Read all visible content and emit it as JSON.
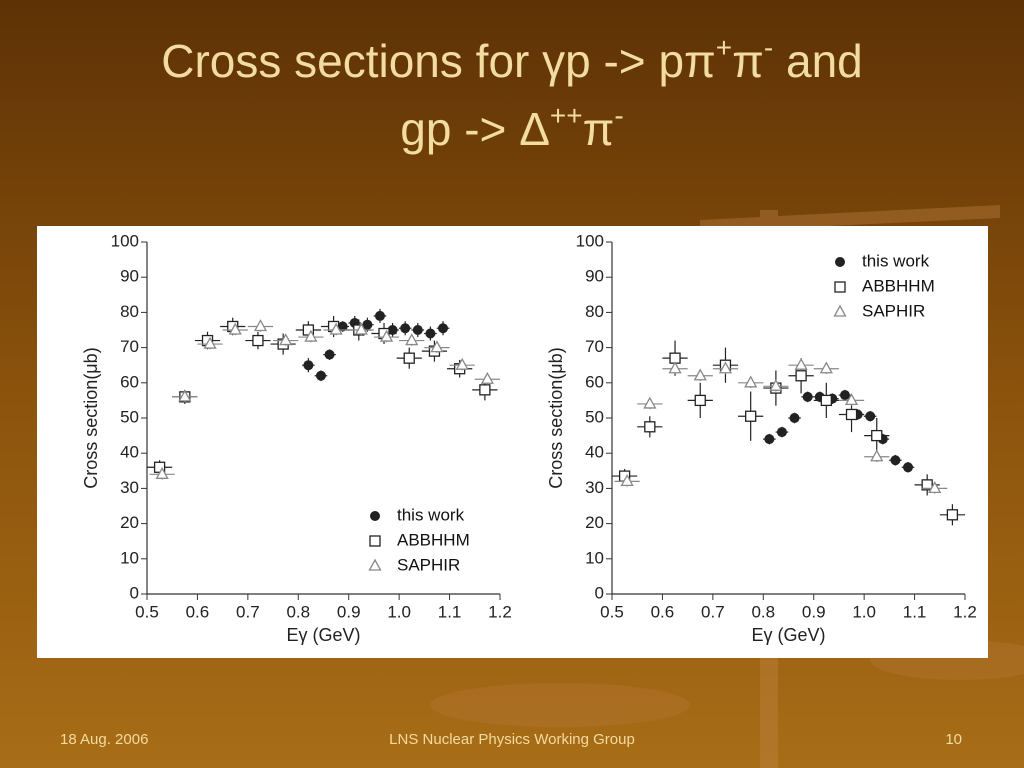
{
  "slide": {
    "title": [
      [
        {
          "text": "Cross sections for γp -> pπ"
        },
        {
          "sup": "+"
        },
        {
          "text": "π"
        },
        {
          "sup": "-"
        },
        {
          "text": " and"
        }
      ],
      [
        {
          "text": "gp -> Δ"
        },
        {
          "sup": "++"
        },
        {
          "text": "π"
        },
        {
          "sup": "-"
        }
      ]
    ],
    "footer": {
      "date": "18 Aug. 2006",
      "center": "LNS Nuclear Physics Working Group",
      "page": "10"
    }
  },
  "chart_data": [
    {
      "type": "scatter",
      "xlabel": "Eγ (GeV)",
      "ylabel": "Cross section(μb)",
      "xlim": [
        0.5,
        1.2
      ],
      "ylim": [
        0,
        100
      ],
      "xticks": [
        0.5,
        0.6,
        0.7,
        0.8,
        0.9,
        {
          "value": 1,
          "label": "1.0"
        },
        1.1,
        1.2
      ],
      "yticks": [
        0,
        10,
        20,
        30,
        40,
        50,
        60,
        70,
        80,
        90,
        100
      ],
      "legend": "lower right",
      "series": [
        {
          "name": "this work",
          "color": "#222222",
          "marker": "circle",
          "xerr": 0.0125,
          "x": [
            0.82,
            0.845,
            0.862,
            0.888,
            0.912,
            0.937,
            0.962,
            0.987,
            1.012,
            1.037,
            1.062,
            1.087
          ],
          "y": [
            65,
            62,
            68,
            76,
            77,
            76.5,
            79,
            75,
            75.5,
            75,
            74,
            75.5
          ],
          "yerr": [
            2,
            1.5,
            1.5,
            1.5,
            2,
            2,
            2,
            2,
            2,
            2,
            2,
            2
          ]
        },
        {
          "name": "ABBHHM",
          "color": "#222222",
          "marker": "square",
          "xerr": 0.025,
          "x": [
            0.525,
            0.575,
            0.62,
            0.67,
            0.72,
            0.77,
            0.82,
            0.87,
            0.92,
            0.97,
            1.02,
            1.07,
            1.12,
            1.17
          ],
          "y": [
            36,
            56,
            72,
            76,
            72,
            71,
            75,
            76,
            75,
            74,
            67,
            69,
            64,
            58
          ],
          "yerr": [
            2,
            2,
            2.5,
            2.5,
            2.5,
            3,
            2.5,
            3,
            3,
            3,
            3,
            3,
            2.5,
            3
          ]
        },
        {
          "name": "SAPHIR",
          "color": "#888888",
          "marker": "triangle",
          "xerr": 0.025,
          "x": [
            0.53,
            0.575,
            0.625,
            0.675,
            0.725,
            0.775,
            0.825,
            0.875,
            0.925,
            0.975,
            1.025,
            1.075,
            1.125,
            1.175
          ],
          "y": [
            34,
            56,
            71,
            75,
            76,
            72,
            73,
            75,
            75,
            73,
            72,
            70,
            65,
            61
          ],
          "yerr": [
            1.5,
            1.5,
            1.5,
            1.5,
            1.5,
            1.5,
            1.5,
            1.5,
            1.5,
            1.5,
            1.5,
            1.5,
            1.5,
            1.5
          ]
        }
      ]
    },
    {
      "type": "scatter",
      "xlabel": "Eγ (GeV)",
      "ylabel": "Cross section(μb)",
      "xlim": [
        0.5,
        1.2
      ],
      "ylim": [
        0,
        100
      ],
      "xticks": [
        0.5,
        0.6,
        0.7,
        0.8,
        0.9,
        {
          "value": 1,
          "label": "1.0"
        },
        1.1,
        1.2
      ],
      "yticks": [
        0,
        10,
        20,
        30,
        40,
        50,
        60,
        70,
        80,
        90,
        100
      ],
      "legend": "upper right",
      "series": [
        {
          "name": "this work",
          "color": "#222222",
          "marker": "circle",
          "xerr": 0.0125,
          "x": [
            0.812,
            0.837,
            0.862,
            0.888,
            0.912,
            0.937,
            0.962,
            0.987,
            1.012,
            1.037,
            1.062,
            1.087
          ],
          "y": [
            44,
            46,
            50,
            56,
            56,
            55.5,
            56.5,
            51,
            50.5,
            44,
            38,
            36
          ],
          "yerr": [
            1.5,
            1.5,
            1.5,
            1.5,
            1.5,
            1.5,
            1.5,
            1.5,
            1.5,
            1.5,
            1.5,
            1.5
          ]
        },
        {
          "name": "ABBHHM",
          "color": "#222222",
          "marker": "square",
          "xerr": 0.025,
          "x": [
            0.525,
            0.575,
            0.625,
            0.675,
            0.725,
            0.775,
            0.825,
            0.875,
            0.925,
            0.975,
            1.025,
            1.125,
            1.175
          ],
          "y": [
            33.5,
            47.5,
            67,
            55,
            65,
            50.5,
            58.5,
            62,
            55,
            51,
            45,
            31,
            22.5
          ],
          "yerr": [
            2,
            3,
            5,
            5,
            5,
            7,
            5,
            5,
            5,
            5,
            5,
            3,
            3
          ]
        },
        {
          "name": "SAPHIR",
          "color": "#888888",
          "marker": "triangle",
          "xerr": 0.025,
          "x": [
            0.53,
            0.575,
            0.625,
            0.675,
            0.725,
            0.775,
            0.825,
            0.875,
            0.925,
            0.975,
            1.025,
            1.14
          ],
          "y": [
            32,
            54,
            64,
            62,
            64,
            60,
            59,
            65,
            64,
            55,
            39,
            30
          ],
          "yerr": [
            1.5,
            1.5,
            1.5,
            1.5,
            1.5,
            1.5,
            1.5,
            1.5,
            1.5,
            1.5,
            1.5,
            1.5
          ]
        }
      ]
    }
  ]
}
